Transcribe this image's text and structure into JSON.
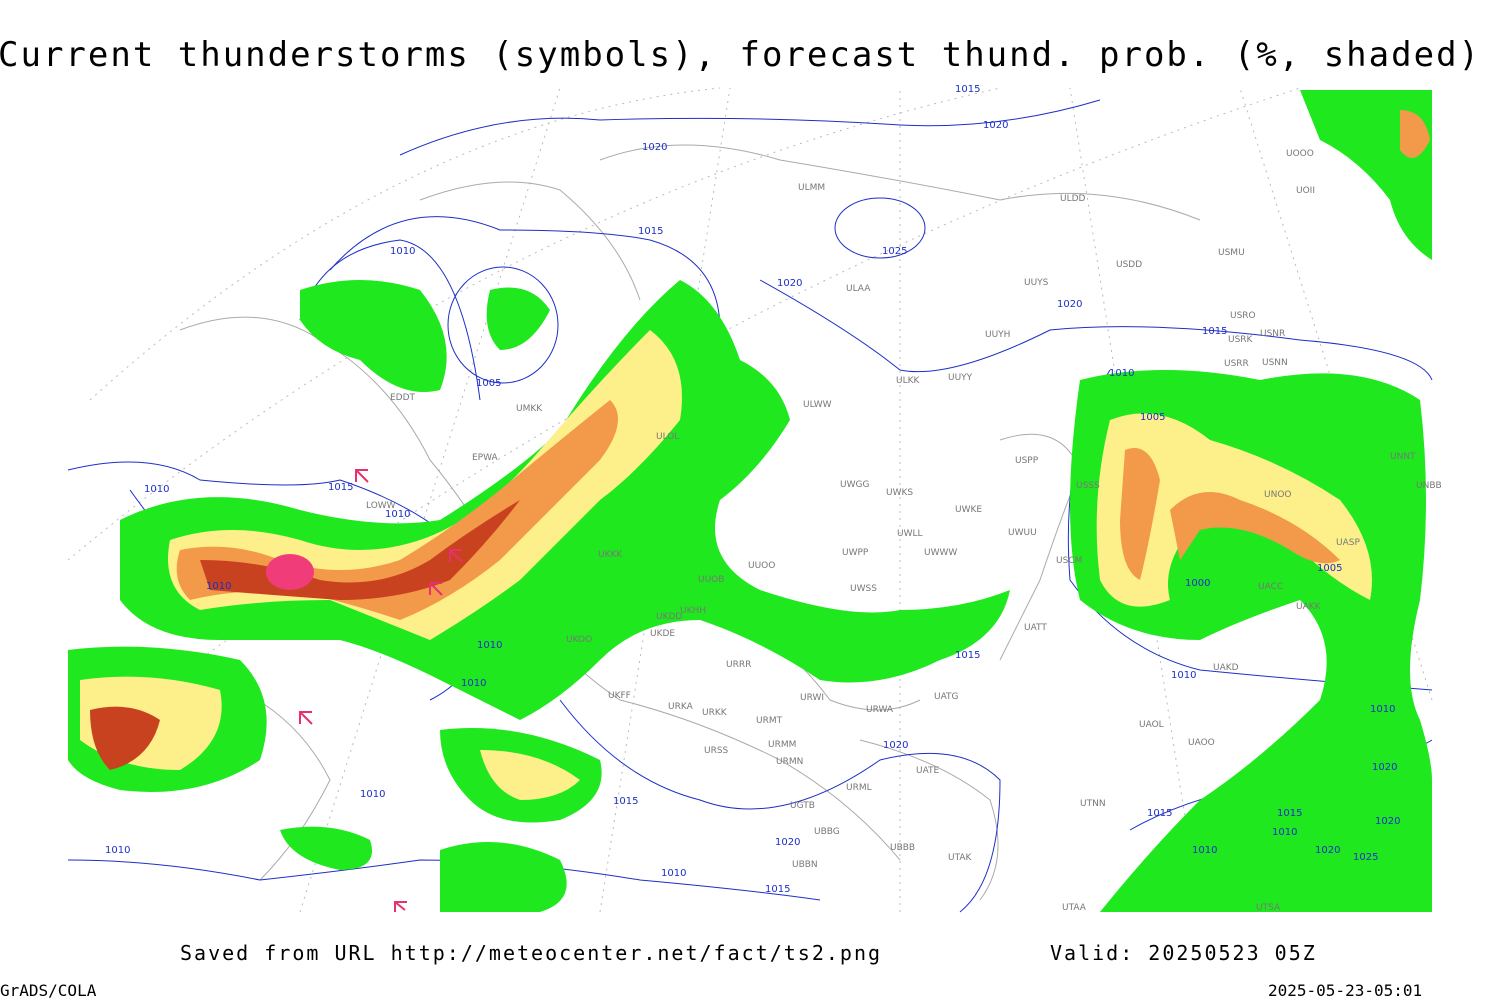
{
  "title": "Current thunderstorms (symbols), forecast thund. prob. (%, shaded)",
  "footer": {
    "source": "Saved from URL http://meteocenter.net/fact/ts2.png",
    "valid": "Valid: 20250523 05Z",
    "software": "GrADS/COLA",
    "timestamp": "2025-05-23-05:01"
  },
  "isobar_labels": [
    "1015",
    "1020",
    "1020",
    "1015",
    "1010",
    "1025",
    "1020",
    "1020",
    "1015",
    "1005",
    "1010",
    "1005",
    "1010",
    "1015",
    "1010",
    "1010",
    "1000",
    "1005",
    "1010",
    "1010",
    "1015",
    "1010",
    "1010",
    "1020",
    "1020",
    "1010",
    "1015",
    "1015",
    "1015",
    "1020",
    "1010",
    "1020",
    "1025",
    "1010",
    "1020",
    "1010",
    "1010",
    "1015"
  ],
  "station_labels": [
    "ULMM",
    "ULDD",
    "USDD",
    "USMU",
    "UUYS",
    "ULAA",
    "UUYH",
    "USRO",
    "USRK",
    "USNR",
    "USRR",
    "USNN",
    "ULKK",
    "UUYY",
    "ULWW",
    "USPP",
    "UWGG",
    "UWKS",
    "UWKE",
    "UWLL",
    "UWUU",
    "UWPP",
    "UWWW",
    "UUOO",
    "UWSS",
    "UUOB",
    "UKHH",
    "UKDD",
    "UKDE",
    "UKOO",
    "UKFF",
    "URRR",
    "URWI",
    "UATG",
    "URWA",
    "URKA",
    "URKK",
    "URMT",
    "URMM",
    "URSS",
    "URMN",
    "UATT",
    "UATE",
    "UAKD",
    "UAOL",
    "UAOO",
    "UTNN",
    "URML",
    "UGTB",
    "UBBB",
    "UBBG",
    "UBBN",
    "UTAK",
    "USSS",
    "USCM",
    "UNOO",
    "UNBB",
    "UNNT",
    "UASP",
    "UACC",
    "UAKK",
    "EPWA",
    "EDDT",
    "LOWW",
    "UKKK",
    "UMKK",
    "ULOL",
    "UOOO",
    "UOII",
    "UTSA",
    "UTAA"
  ]
}
